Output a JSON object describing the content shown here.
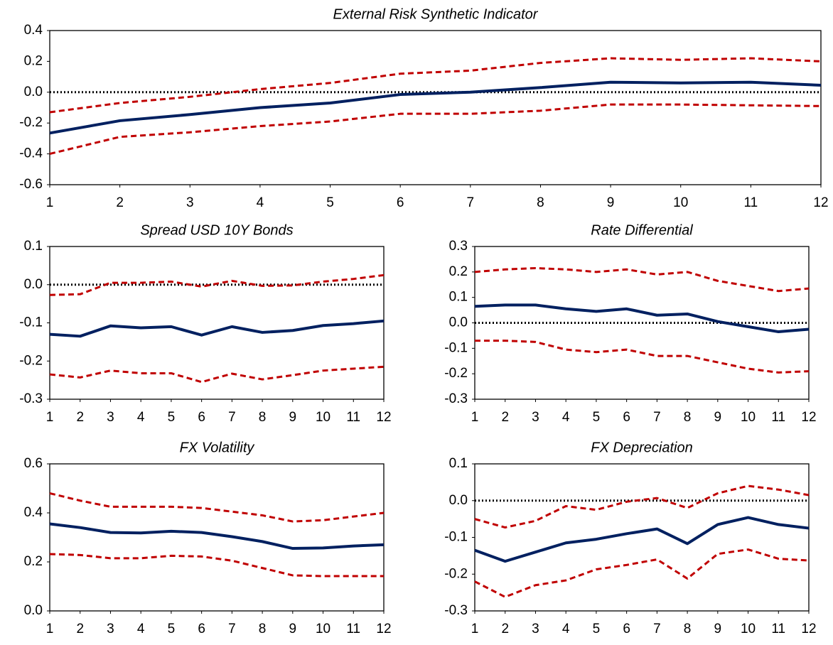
{
  "chart_data": [
    {
      "type": "line",
      "title": "External Risk Synthetic Indicator",
      "x": [
        1,
        2,
        3,
        4,
        5,
        6,
        7,
        8,
        9,
        10,
        11,
        12
      ],
      "xlim": [
        1,
        12
      ],
      "xticks": [
        1,
        2,
        3,
        4,
        5,
        6,
        7,
        8,
        9,
        10,
        11,
        12
      ],
      "ylim": [
        -0.6,
        0.4
      ],
      "yticks": [
        0.4,
        0.2,
        {
          "value": 0,
          "label": "0.0"
        },
        -0.2,
        -0.4,
        -0.6
      ],
      "zero_line": true,
      "series": [
        {
          "color": "#002060",
          "dash": false,
          "values": [
            -0.265,
            -0.185,
            -0.145,
            -0.1,
            -0.07,
            -0.015,
            0.0,
            0.03,
            0.065,
            0.06,
            0.065,
            0.045
          ]
        },
        {
          "color": "#c00000",
          "dash": true,
          "values": [
            -0.13,
            -0.07,
            -0.03,
            0.02,
            0.06,
            0.12,
            0.14,
            0.19,
            0.22,
            0.21,
            0.22,
            0.2
          ]
        },
        {
          "color": "#c00000",
          "dash": true,
          "values": [
            -0.4,
            -0.29,
            -0.26,
            -0.22,
            -0.19,
            -0.14,
            -0.14,
            -0.12,
            -0.08,
            -0.08,
            -0.085,
            -0.09
          ]
        }
      ]
    },
    {
      "type": "line",
      "title": "Spread USD 10Y Bonds",
      "x": [
        1,
        2,
        3,
        4,
        5,
        6,
        7,
        8,
        9,
        10,
        11,
        12
      ],
      "xlim": [
        1,
        12
      ],
      "xticks": [
        1,
        2,
        3,
        4,
        5,
        6,
        7,
        8,
        9,
        10,
        11,
        12
      ],
      "ylim": [
        -0.3,
        0.1
      ],
      "yticks": [
        0.1,
        {
          "value": 0,
          "label": "0.0"
        },
        -0.1,
        -0.2,
        -0.3
      ],
      "zero_line": true,
      "series": [
        {
          "color": "#002060",
          "dash": false,
          "values": [
            -0.13,
            -0.135,
            -0.108,
            -0.113,
            -0.11,
            -0.132,
            -0.11,
            -0.125,
            -0.12,
            -0.107,
            -0.102,
            -0.095
          ]
        },
        {
          "color": "#c00000",
          "dash": true,
          "values": [
            -0.027,
            -0.025,
            0.005,
            0.005,
            0.008,
            -0.005,
            0.01,
            -0.003,
            -0.002,
            0.008,
            0.015,
            0.025
          ]
        },
        {
          "color": "#c00000",
          "dash": true,
          "values": [
            -0.235,
            -0.243,
            -0.225,
            -0.232,
            -0.232,
            -0.255,
            -0.233,
            -0.248,
            -0.237,
            -0.225,
            -0.22,
            -0.215
          ]
        }
      ]
    },
    {
      "type": "line",
      "title": "Rate Differential",
      "x": [
        1,
        2,
        3,
        4,
        5,
        6,
        7,
        8,
        9,
        10,
        11,
        12
      ],
      "xlim": [
        1,
        12
      ],
      "xticks": [
        1,
        2,
        3,
        4,
        5,
        6,
        7,
        8,
        9,
        10,
        11,
        12
      ],
      "ylim": [
        -0.3,
        0.3
      ],
      "yticks": [
        0.3,
        0.2,
        0.1,
        {
          "value": 0,
          "label": "0.0"
        },
        -0.1,
        -0.2,
        -0.3
      ],
      "zero_line": true,
      "series": [
        {
          "color": "#002060",
          "dash": false,
          "values": [
            0.065,
            0.07,
            0.07,
            0.055,
            0.045,
            0.055,
            0.03,
            0.035,
            0.005,
            -0.015,
            -0.035,
            -0.025
          ]
        },
        {
          "color": "#c00000",
          "dash": true,
          "values": [
            0.2,
            0.21,
            0.215,
            0.21,
            0.2,
            0.21,
            0.19,
            0.2,
            0.165,
            0.145,
            0.125,
            0.135
          ]
        },
        {
          "color": "#c00000",
          "dash": true,
          "values": [
            -0.07,
            -0.07,
            -0.075,
            -0.105,
            -0.115,
            -0.105,
            -0.13,
            -0.13,
            -0.155,
            -0.18,
            -0.195,
            -0.19
          ]
        }
      ]
    },
    {
      "type": "line",
      "title": "FX Volatility",
      "x": [
        1,
        2,
        3,
        4,
        5,
        6,
        7,
        8,
        9,
        10,
        11,
        12
      ],
      "xlim": [
        1,
        12
      ],
      "xticks": [
        1,
        2,
        3,
        4,
        5,
        6,
        7,
        8,
        9,
        10,
        11,
        12
      ],
      "ylim": [
        0,
        0.6
      ],
      "yticks": [
        0.6,
        0.4,
        0.2,
        {
          "value": 0,
          "label": "0.0"
        }
      ],
      "zero_line": false,
      "series": [
        {
          "color": "#002060",
          "dash": false,
          "values": [
            0.355,
            0.34,
            0.32,
            0.318,
            0.325,
            0.32,
            0.303,
            0.283,
            0.255,
            0.257,
            0.265,
            0.27
          ]
        },
        {
          "color": "#c00000",
          "dash": true,
          "values": [
            0.48,
            0.45,
            0.425,
            0.425,
            0.425,
            0.42,
            0.405,
            0.39,
            0.365,
            0.37,
            0.385,
            0.4
          ]
        },
        {
          "color": "#c00000",
          "dash": true,
          "values": [
            0.232,
            0.228,
            0.215,
            0.215,
            0.225,
            0.222,
            0.205,
            0.175,
            0.145,
            0.142,
            0.142,
            0.142
          ]
        }
      ]
    },
    {
      "type": "line",
      "title": "FX Depreciation",
      "x": [
        1,
        2,
        3,
        4,
        5,
        6,
        7,
        8,
        9,
        10,
        11,
        12
      ],
      "xlim": [
        1,
        12
      ],
      "xticks": [
        1,
        2,
        3,
        4,
        5,
        6,
        7,
        8,
        9,
        10,
        11,
        12
      ],
      "ylim": [
        -0.3,
        0.1
      ],
      "yticks": [
        0.1,
        {
          "value": 0,
          "label": "0.0"
        },
        -0.1,
        -0.2,
        -0.3
      ],
      "zero_line": true,
      "series": [
        {
          "color": "#002060",
          "dash": false,
          "values": [
            -0.135,
            -0.165,
            -0.14,
            -0.115,
            -0.105,
            -0.09,
            -0.077,
            -0.117,
            -0.065,
            -0.046,
            -0.065,
            -0.075
          ]
        },
        {
          "color": "#c00000",
          "dash": true,
          "values": [
            -0.05,
            -0.073,
            -0.055,
            -0.015,
            -0.025,
            -0.003,
            0.007,
            -0.02,
            0.02,
            0.04,
            0.03,
            0.015
          ]
        },
        {
          "color": "#c00000",
          "dash": true,
          "values": [
            -0.22,
            -0.262,
            -0.23,
            -0.217,
            -0.187,
            -0.175,
            -0.16,
            -0.212,
            -0.145,
            -0.133,
            -0.158,
            -0.163
          ]
        }
      ]
    }
  ]
}
